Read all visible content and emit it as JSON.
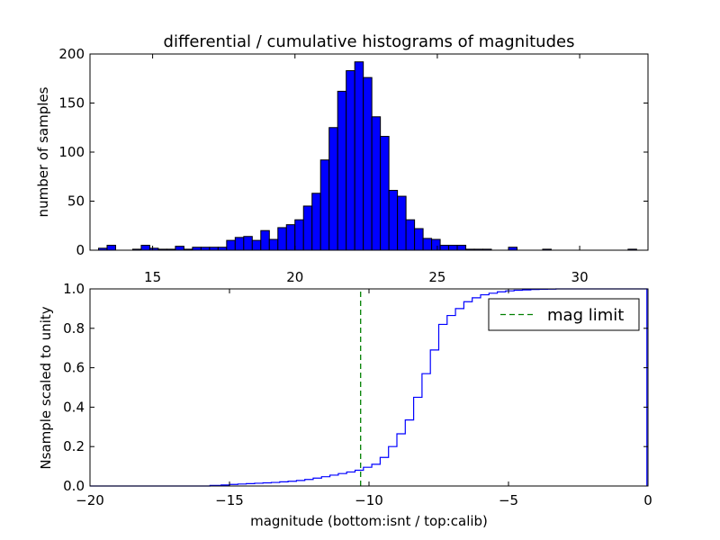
{
  "chart_data": [
    {
      "type": "bar",
      "title": "differential / cumulative histograms of magnitudes",
      "ylabel": "number of samples",
      "xlabel": "",
      "xlim": [
        12.8,
        32.4
      ],
      "ylim": [
        0,
        200
      ],
      "xticks": [
        15,
        20,
        25,
        30
      ],
      "yticks": [
        0,
        50,
        100,
        150,
        200
      ],
      "x_axis_position": "top-of-lower-panel",
      "bin_width": 0.3,
      "bin_starts": [
        13.1,
        13.4,
        13.7,
        14.0,
        14.3,
        14.6,
        14.9,
        15.2,
        15.5,
        15.8,
        16.1,
        16.4,
        16.7,
        17.0,
        17.3,
        17.6,
        17.9,
        18.2,
        18.5,
        18.8,
        19.1,
        19.4,
        19.7,
        20.0,
        20.3,
        20.6,
        20.9,
        21.2,
        21.5,
        21.8,
        22.1,
        22.4,
        22.7,
        23.0,
        23.3,
        23.6,
        23.9,
        24.2,
        24.5,
        24.8,
        25.1,
        25.4,
        25.7,
        26.0,
        26.3,
        26.6,
        26.9,
        27.2,
        27.5,
        27.8,
        28.1,
        28.4,
        28.7,
        29.0,
        29.3,
        29.6,
        29.9,
        30.2,
        30.5,
        30.8,
        31.1,
        31.4,
        31.7
      ],
      "values": [
        2,
        5,
        0,
        0,
        1,
        5,
        2,
        1,
        1,
        4,
        1,
        3,
        3,
        3,
        3,
        10,
        13,
        14,
        10,
        20,
        11,
        23,
        26,
        31,
        45,
        58,
        92,
        125,
        162,
        183,
        192,
        176,
        136,
        116,
        61,
        55,
        31,
        22,
        12,
        11,
        5,
        5,
        5,
        1,
        1,
        1,
        0,
        0,
        3,
        0,
        0,
        0,
        1,
        0,
        0,
        0,
        0,
        0,
        0,
        0,
        0,
        0,
        1
      ]
    },
    {
      "type": "line",
      "drawstyle": "steps",
      "ylabel": "Nsample scaled to unity",
      "xlabel": "magnitude (bottom:isnt / top:calib)",
      "xlim": [
        -20,
        0
      ],
      "ylim": [
        0,
        1.0
      ],
      "xticks": [
        -20,
        -15,
        -10,
        -5,
        0
      ],
      "xtick_labels": [
        "−20",
        "−15",
        "−10",
        "−5",
        "0"
      ],
      "yticks": [
        0.0,
        0.2,
        0.4,
        0.6,
        0.8,
        1.0
      ],
      "ytick_labels": [
        "0.0",
        "0.2",
        "0.4",
        "0.6",
        "0.8",
        "1.0"
      ],
      "legend_position": "top-right",
      "series": [
        {
          "name": "",
          "color": "#0000ff",
          "x": [
            -20,
            -15.7,
            -15.3,
            -15,
            -14.7,
            -14.4,
            -14.1,
            -13.8,
            -13.5,
            -13.2,
            -12.9,
            -12.6,
            -12.3,
            -12,
            -11.7,
            -11.4,
            -11.1,
            -10.8,
            -10.5,
            -10.2,
            -9.9,
            -9.6,
            -9.3,
            -9,
            -8.7,
            -8.4,
            -8.1,
            -7.8,
            -7.5,
            -7.2,
            -6.9,
            -6.6,
            -6.3,
            -6,
            -5.7,
            -5.4,
            -5.1,
            -4.8,
            -4.5,
            -4.2,
            -3.9,
            -3.6,
            -3.3,
            -3.0,
            -0.05
          ],
          "y": [
            0,
            0.003,
            0.005,
            0.008,
            0.01,
            0.012,
            0.014,
            0.016,
            0.018,
            0.021,
            0.024,
            0.028,
            0.033,
            0.04,
            0.047,
            0.055,
            0.063,
            0.071,
            0.08,
            0.095,
            0.11,
            0.145,
            0.2,
            0.265,
            0.335,
            0.45,
            0.57,
            0.69,
            0.82,
            0.865,
            0.9,
            0.935,
            0.955,
            0.97,
            0.978,
            0.985,
            0.99,
            0.993,
            0.995,
            0.997,
            0.998,
            0.999,
            1.0,
            1.0,
            1.0
          ]
        },
        {
          "name": "mag limit",
          "color": "#008000",
          "style": "dashed",
          "x_value": -10.3
        }
      ]
    }
  ]
}
